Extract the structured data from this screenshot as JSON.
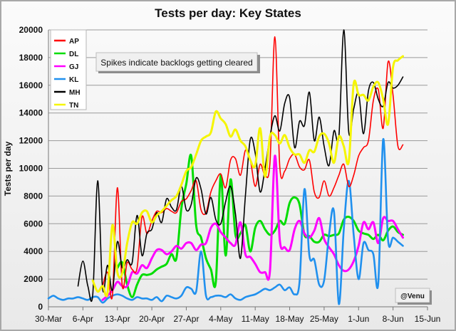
{
  "chart_data": {
    "type": "line",
    "title": "Tests per day: Key States",
    "ylabel": "Tests  per day",
    "xlabel": "",
    "ylim": [
      0,
      20000
    ],
    "yticks": [
      0,
      2000,
      4000,
      6000,
      8000,
      10000,
      12000,
      14000,
      16000,
      18000,
      20000
    ],
    "ytick_labels": [
      "0",
      "2000",
      "4000",
      "6000",
      "8000",
      "10000",
      "12000",
      "14000",
      "16000",
      "18000",
      "20000"
    ],
    "x_start_date": "2020-03-30",
    "xlim_days": [
      0,
      77
    ],
    "xticks": [
      "30-Mar",
      "6-Apr",
      "13-Apr",
      "20-Apr",
      "27-Apr",
      "4-May",
      "11-May",
      "18-May",
      "25-May",
      "1-Jun",
      "8-Jun",
      "15-Jun"
    ],
    "grid": "horizontal",
    "legend_position": "top-left",
    "annotation": "Spikes indicate backlogs getting cleared",
    "credit": "@Venu",
    "series": [
      {
        "name": "AP",
        "color": "#ff0000",
        "x": [
          11,
          12,
          13,
          14,
          15,
          16,
          17,
          18,
          19,
          20,
          21,
          22,
          23,
          24,
          25,
          26,
          27,
          28,
          29,
          30,
          31,
          32,
          33,
          34,
          35,
          36,
          37,
          38,
          39,
          40,
          41,
          42,
          43,
          44,
          45,
          46,
          47,
          48,
          49,
          50,
          51,
          52,
          53,
          54,
          55,
          56,
          57,
          58,
          59,
          60,
          61,
          62,
          63,
          64,
          65,
          66,
          67,
          68,
          69,
          70,
          71,
          72
        ],
        "y": [
          1500,
          2500,
          800,
          8600,
          1500,
          3200,
          2700,
          2800,
          6500,
          5300,
          6200,
          6900,
          6800,
          7100,
          6900,
          6800,
          7600,
          7800,
          8400,
          9100,
          7000,
          6800,
          8300,
          9100,
          9600,
          8600,
          10600,
          10700,
          9500,
          11300,
          10600,
          8700,
          10300,
          9500,
          10400,
          19500,
          10100,
          9800,
          10700,
          11000,
          10100,
          9900,
          10600,
          8300,
          7900,
          9100,
          8000,
          8600,
          9500,
          10300,
          8700,
          9500,
          10900,
          11500,
          12000,
          14900,
          15700,
          12900,
          17700,
          15300,
          11600,
          11700
        ]
      },
      {
        "name": "DL",
        "color": "#00dd00",
        "x": [
          14,
          15,
          16,
          17,
          18,
          19,
          20,
          21,
          22,
          23,
          24,
          25,
          26,
          27,
          28,
          29,
          30,
          31,
          32,
          33,
          34,
          35,
          36,
          37,
          38,
          39,
          40,
          41,
          42,
          43,
          44,
          45,
          46,
          47,
          48,
          49,
          50,
          51,
          52,
          53,
          54,
          55,
          56,
          57,
          58,
          59,
          60,
          61,
          62,
          63,
          64,
          65,
          66,
          67,
          68,
          69,
          70,
          71,
          72
        ],
        "y": [
          2800,
          3200,
          1600,
          700,
          1600,
          2300,
          2300,
          2400,
          2700,
          2900,
          3100,
          3800,
          3500,
          7100,
          8900,
          10900,
          5900,
          5000,
          3500,
          2700,
          1800,
          9500,
          3700,
          9200,
          5200,
          5300,
          5900,
          4000,
          5700,
          6200,
          5600,
          5200,
          5500,
          6200,
          6000,
          7500,
          7900,
          7400,
          5200,
          5100,
          4700,
          4700,
          5200,
          5100,
          5200,
          5300,
          6300,
          6500,
          6200,
          5500,
          5300,
          5200,
          4900,
          5200,
          4800,
          5500,
          5800,
          5400,
          5200
        ]
      },
      {
        "name": "GJ",
        "color": "#ff00ff",
        "x": [
          11,
          12,
          13,
          14,
          15,
          16,
          17,
          18,
          19,
          20,
          21,
          22,
          23,
          24,
          25,
          26,
          27,
          28,
          29,
          30,
          31,
          32,
          33,
          34,
          35,
          36,
          37,
          38,
          39,
          40,
          41,
          42,
          43,
          44,
          45,
          46,
          47,
          48,
          49,
          50,
          51,
          52,
          53,
          54,
          55,
          56,
          57,
          58,
          59,
          60,
          61,
          62,
          63,
          64,
          65,
          66,
          67,
          68,
          69,
          70,
          71,
          72
        ],
        "y": [
          500,
          800,
          1200,
          1800,
          1500,
          1500,
          2500,
          2400,
          3000,
          2800,
          3500,
          4100,
          4100,
          3800,
          4000,
          4400,
          4200,
          4600,
          4600,
          4100,
          4500,
          4600,
          5700,
          6000,
          5400,
          5000,
          4600,
          4500,
          6100,
          3800,
          3600,
          3100,
          2500,
          2500,
          2600,
          10900,
          4800,
          4300,
          4100,
          5600,
          6200,
          5300,
          5000,
          5500,
          6400,
          4900,
          4300,
          3800,
          3000,
          2600,
          2700,
          3300,
          4400,
          6100,
          5600,
          6100,
          4600,
          6400,
          6200,
          6200,
          5600,
          5000
        ]
      },
      {
        "name": "KL",
        "color": "#2090ee",
        "x": [
          0,
          1,
          2,
          3,
          4,
          5,
          6,
          7,
          8,
          9,
          10,
          11,
          12,
          13,
          14,
          15,
          16,
          17,
          18,
          19,
          20,
          21,
          22,
          23,
          24,
          25,
          26,
          27,
          28,
          29,
          30,
          31,
          32,
          33,
          34,
          35,
          36,
          37,
          38,
          39,
          40,
          41,
          42,
          43,
          44,
          45,
          46,
          47,
          48,
          49,
          50,
          51,
          52,
          53,
          54,
          55,
          56,
          57,
          58,
          59,
          60,
          61,
          62,
          63,
          64,
          65,
          66,
          67,
          68,
          69,
          70,
          71,
          72
        ],
        "y": [
          600,
          800,
          600,
          500,
          600,
          600,
          700,
          600,
          500,
          700,
          700,
          300,
          600,
          800,
          900,
          800,
          600,
          500,
          700,
          600,
          600,
          500,
          700,
          400,
          800,
          700,
          600,
          800,
          1400,
          1300,
          1100,
          4000,
          800,
          700,
          800,
          800,
          700,
          900,
          600,
          500,
          700,
          800,
          900,
          1100,
          1300,
          1200,
          1400,
          1600,
          1200,
          1400,
          900,
          1800,
          8500,
          3700,
          3400,
          1600,
          1900,
          5200,
          6900,
          200,
          5600,
          9100,
          5200,
          2000,
          4600,
          4100,
          3800,
          1700,
          12100,
          4800,
          5000,
          4700,
          4400
        ]
      },
      {
        "name": "MH",
        "color": "#000000",
        "x": [
          6,
          7,
          8,
          9,
          10,
          11,
          12,
          13,
          14,
          15,
          16,
          17,
          18,
          19,
          20,
          21,
          22,
          23,
          24,
          25,
          26,
          27,
          28,
          29,
          30,
          31,
          32,
          33,
          34,
          35,
          36,
          37,
          38,
          39,
          40,
          41,
          42,
          43,
          44,
          45,
          46,
          47,
          48,
          49,
          50,
          51,
          52,
          53,
          54,
          55,
          56,
          57,
          58,
          59,
          60,
          61,
          62,
          63,
          64,
          65,
          66,
          67,
          68,
          69,
          70,
          71,
          72
        ],
        "y": [
          1500,
          3300,
          1500,
          900,
          9100,
          1300,
          3000,
          1200,
          4700,
          2800,
          3400,
          3200,
          6600,
          3700,
          5300,
          5600,
          6800,
          6100,
          7800,
          7200,
          7000,
          8700,
          7000,
          7400,
          9300,
          8500,
          6700,
          7900,
          6300,
          6000,
          7600,
          8700,
          6700,
          3500,
          8000,
          12100,
          11100,
          8300,
          10000,
          12300,
          13800,
          12700,
          14700,
          15100,
          11500,
          13400,
          13100,
          15500,
          12000,
          13700,
          11600,
          10200,
          12700,
          12300,
          20000,
          12600,
          14300,
          15400,
          12500,
          15600,
          16200,
          15000,
          14500,
          16200,
          15800,
          16000,
          16600
        ]
      },
      {
        "name": "TN",
        "color": "#f5f500",
        "x": [
          9,
          10,
          11,
          12,
          13,
          14,
          15,
          16,
          17,
          18,
          19,
          20,
          21,
          22,
          23,
          24,
          25,
          26,
          27,
          28,
          29,
          30,
          31,
          32,
          33,
          34,
          35,
          36,
          37,
          38,
          39,
          40,
          41,
          42,
          43,
          44,
          45,
          46,
          47,
          48,
          49,
          50,
          51,
          52,
          53,
          54,
          55,
          56,
          57,
          58,
          59,
          60,
          61,
          62,
          63,
          64,
          65,
          66,
          67,
          68,
          69,
          70,
          71,
          72
        ],
        "y": [
          1900,
          1100,
          1500,
          1000,
          5900,
          2500,
          2400,
          4600,
          6100,
          6000,
          6800,
          6900,
          6100,
          6600,
          6900,
          7300,
          7700,
          8000,
          8800,
          9800,
          10100,
          11000,
          12000,
          12300,
          12600,
          14100,
          13600,
          13200,
          12300,
          12800,
          12000,
          11600,
          10600,
          10200,
          12900,
          9400,
          12300,
          12400,
          11800,
          12400,
          11500,
          11000,
          11000,
          10400,
          11300,
          11200,
          12300,
          12500,
          11800,
          10400,
          12300,
          11600,
          10500,
          16100,
          15300,
          15300,
          14900,
          15900,
          16200,
          15000,
          13200,
          17300,
          17800,
          18100
        ]
      }
    ]
  }
}
